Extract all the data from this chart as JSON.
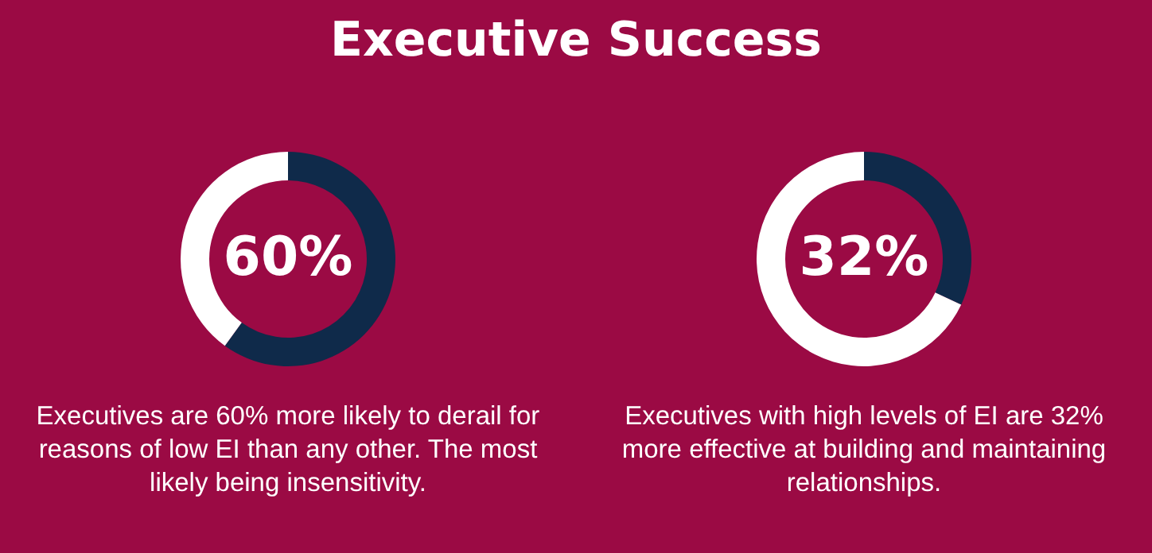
{
  "chart_data": [
    {
      "type": "donut",
      "title": "Executive Success",
      "categories": [
        null,
        null
      ],
      "values": [
        60,
        40
      ],
      "colors": [
        "#0f2a4a",
        "#ffffff"
      ],
      "annotations": [
        "60%",
        "Executives are 60% more likely to derail for reasons of low EI than any other. The most likely being insensitivity."
      ]
    },
    {
      "type": "donut",
      "categories": [
        null,
        null
      ],
      "values": [
        32,
        68
      ],
      "colors": [
        "#0f2a4a",
        "#ffffff"
      ],
      "annotations": [
        "32%",
        "Executives with high levels of EI are 32% more effective at building and maintaining relationships."
      ]
    }
  ]
}
